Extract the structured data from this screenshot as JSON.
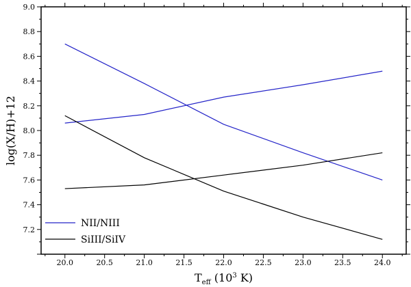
{
  "chart_data": {
    "type": "line",
    "xlabel": "T_eff (10^3 K)",
    "ylabel": "log(X/H)+12",
    "xlim": [
      19.7,
      24.3
    ],
    "ylim": [
      7.0,
      9.0
    ],
    "xticks": [
      20.0,
      20.5,
      21.0,
      21.5,
      22.0,
      22.5,
      23.0,
      23.5,
      24.0
    ],
    "xtick_labels": [
      "20.0",
      "20.5",
      "21.0",
      "21.5",
      "22.0",
      "22.5",
      "23.0",
      "23.5",
      "24.0"
    ],
    "yticks": [
      7.2,
      7.4,
      7.6,
      7.8,
      8.0,
      8.2,
      8.4,
      8.6,
      8.8,
      9.0
    ],
    "ytick_labels": [
      "7.2",
      "7.4",
      "7.6",
      "7.8",
      "8.0",
      "8.2",
      "8.4",
      "8.6",
      "8.8",
      "9.0"
    ],
    "grid": false,
    "legend_position": "bottom-left",
    "series": [
      {
        "name": "NII/NIII",
        "color": "#2323c8",
        "lines": [
          {
            "x": [
              20,
              21,
              22,
              23,
              24
            ],
            "y": [
              8.7,
              8.38,
              8.05,
              7.82,
              7.6
            ]
          },
          {
            "x": [
              20,
              21,
              22,
              23,
              24
            ],
            "y": [
              8.06,
              8.13,
              8.27,
              8.37,
              8.48
            ]
          }
        ]
      },
      {
        "name": "SiIII/SiIV",
        "color": "#000000",
        "lines": [
          {
            "x": [
              20,
              21,
              22,
              23,
              24
            ],
            "y": [
              8.12,
              7.78,
              7.51,
              7.3,
              7.12
            ]
          },
          {
            "x": [
              20,
              21,
              22,
              23,
              24
            ],
            "y": [
              7.53,
              7.56,
              7.64,
              7.72,
              7.82
            ]
          }
        ]
      }
    ]
  }
}
